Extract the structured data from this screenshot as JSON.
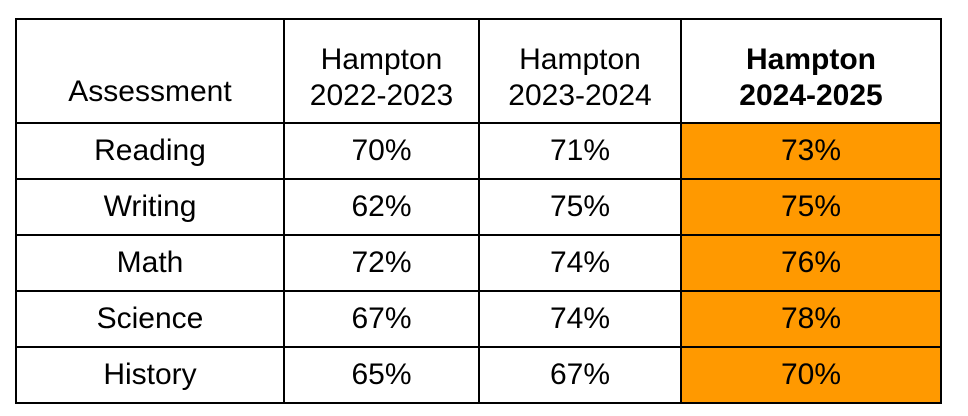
{
  "table": {
    "headers": [
      {
        "line1": "Assessment",
        "line2": ""
      },
      {
        "line1": "Hampton",
        "line2": "2022-2023"
      },
      {
        "line1": "Hampton",
        "line2": "2023-2024"
      },
      {
        "line1": "Hampton",
        "line2": "2024-2025"
      }
    ],
    "rows": [
      {
        "assessment": "Reading",
        "y2022": "70%",
        "y2023": "71%",
        "y2024": "73%"
      },
      {
        "assessment": "Writing",
        "y2022": "62%",
        "y2023": "75%",
        "y2024": "75%"
      },
      {
        "assessment": "Math",
        "y2022": "72%",
        "y2023": "74%",
        "y2024": "76%"
      },
      {
        "assessment": "Science",
        "y2022": "67%",
        "y2023": "74%",
        "y2024": "78%"
      },
      {
        "assessment": "History",
        "y2022": "65%",
        "y2023": "67%",
        "y2024": "70%"
      }
    ],
    "highlight_color": "#ff9900"
  }
}
